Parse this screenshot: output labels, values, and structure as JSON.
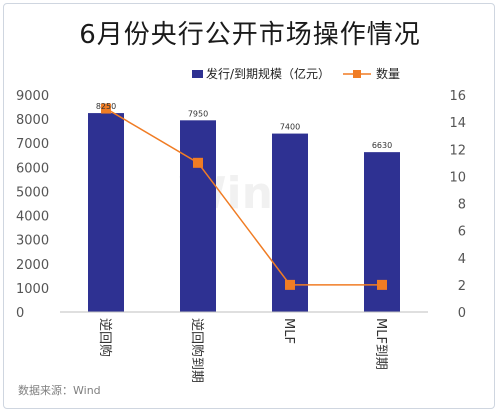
{
  "chart_data": {
    "type": "bar",
    "title": "6月份央行公开市场操作情况",
    "categories": [
      "逆回购",
      "逆回购到期",
      "MLF",
      "MLF到期"
    ],
    "series": [
      {
        "name": "发行/到期规模（亿元）",
        "type": "bar",
        "axis": "left",
        "values": [
          8250,
          7950,
          7400,
          6630
        ],
        "color": "#2e3192"
      },
      {
        "name": "数量",
        "type": "line",
        "axis": "right",
        "values": [
          15,
          11,
          2,
          2
        ],
        "color": "#f07c24"
      }
    ],
    "data_labels": [
      "8250",
      "7950",
      "7400",
      "6630"
    ],
    "ylim": [
      0,
      9000
    ],
    "yticks": [
      "0",
      "1000",
      "2000",
      "3000",
      "4000",
      "5000",
      "6000",
      "7000",
      "8000",
      "9000"
    ],
    "y2lim": [
      0,
      16
    ],
    "y2ticks": [
      "0",
      "2",
      "4",
      "6",
      "8",
      "10",
      "12",
      "14",
      "16"
    ],
    "grid": false,
    "legend_position": "top-right"
  },
  "watermark": "Wind",
  "source": "数据来源：Wind"
}
